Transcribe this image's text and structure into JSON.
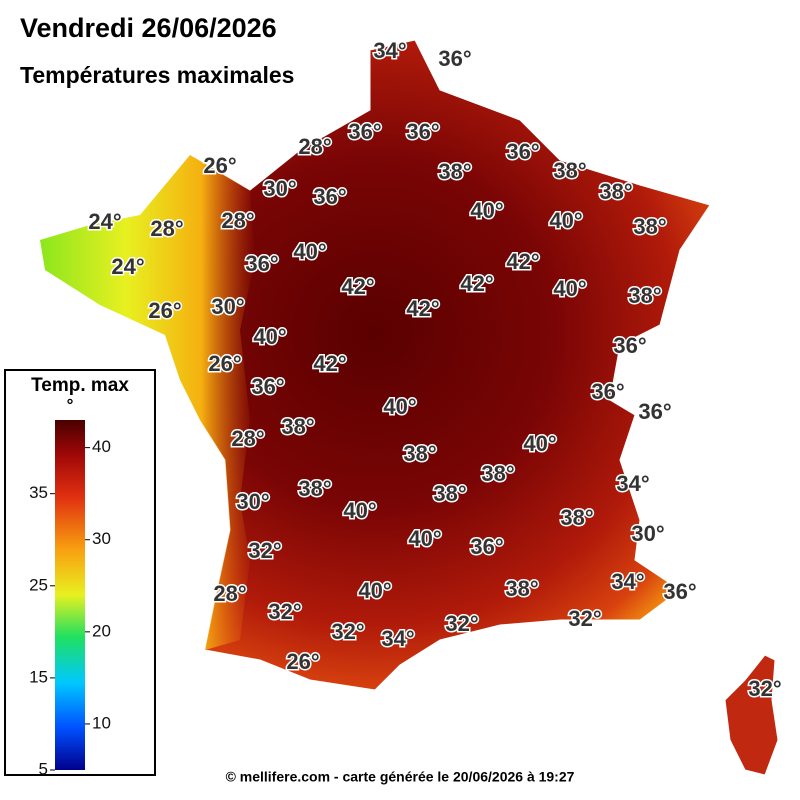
{
  "header": {
    "title": "Vendredi 26/06/2026",
    "subtitle": "Températures maximales"
  },
  "labels": [
    "34°",
    "36°",
    "28°",
    "36°",
    "36°",
    "36°",
    "26°",
    "38°",
    "38°",
    "30°",
    "36°",
    "38°",
    "24°",
    "28°",
    "28°",
    "40°",
    "40°",
    "38°",
    "40°",
    "24°",
    "36°",
    "42°",
    "42°",
    "42°",
    "40°",
    "38°",
    "26°",
    "30°",
    "42°",
    "40°",
    "36°",
    "26°",
    "42°",
    "36°",
    "36°",
    "36°",
    "40°",
    "38°",
    "28°",
    "40°",
    "38°",
    "38°",
    "38°",
    "34°",
    "38°",
    "30°",
    "40°",
    "38°",
    "30°",
    "40°",
    "36°",
    "32°",
    "40°",
    "38°",
    "34°",
    "36°",
    "28°",
    "32°",
    "32°",
    "34°",
    "32°",
    "32°",
    "26°",
    "32°"
  ],
  "legend": {
    "title": "Temp. max",
    "unit": "°",
    "range": [
      5,
      43
    ],
    "ticks": [
      5,
      10,
      15,
      20,
      25,
      30,
      35,
      40
    ]
  },
  "footer": "© mellifere.com - carte générée le 20/06/2026 à 19:27"
}
